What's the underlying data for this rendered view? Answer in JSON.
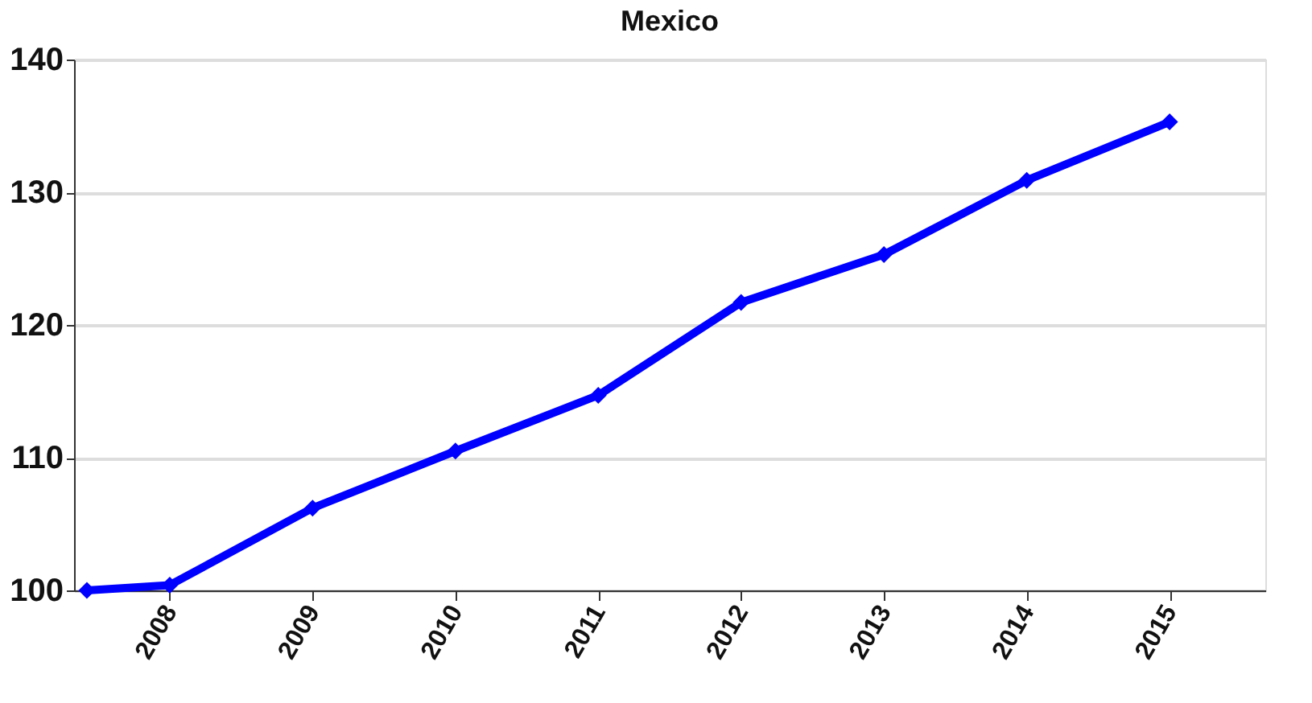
{
  "chart_data": {
    "type": "line",
    "title": "Mexico",
    "x": [
      2007.42,
      2008,
      2009,
      2010,
      2011,
      2012,
      2013,
      2014,
      2015
    ],
    "series": [
      {
        "color": "#0000ff",
        "values": [
          100.0,
          100.4,
          106.2,
          110.5,
          114.7,
          121.7,
          125.3,
          130.9,
          135.3
        ]
      }
    ],
    "xlim": [
      2007.33,
      2015.67
    ],
    "xticks": [
      2008,
      2009,
      2010,
      2011,
      2012,
      2013,
      2014,
      2015
    ],
    "ylim": [
      100,
      140
    ],
    "yticks": [
      100,
      110,
      120,
      130,
      140
    ],
    "grid": "y",
    "legend": false,
    "marker": "diamond",
    "line_style": "solid"
  }
}
